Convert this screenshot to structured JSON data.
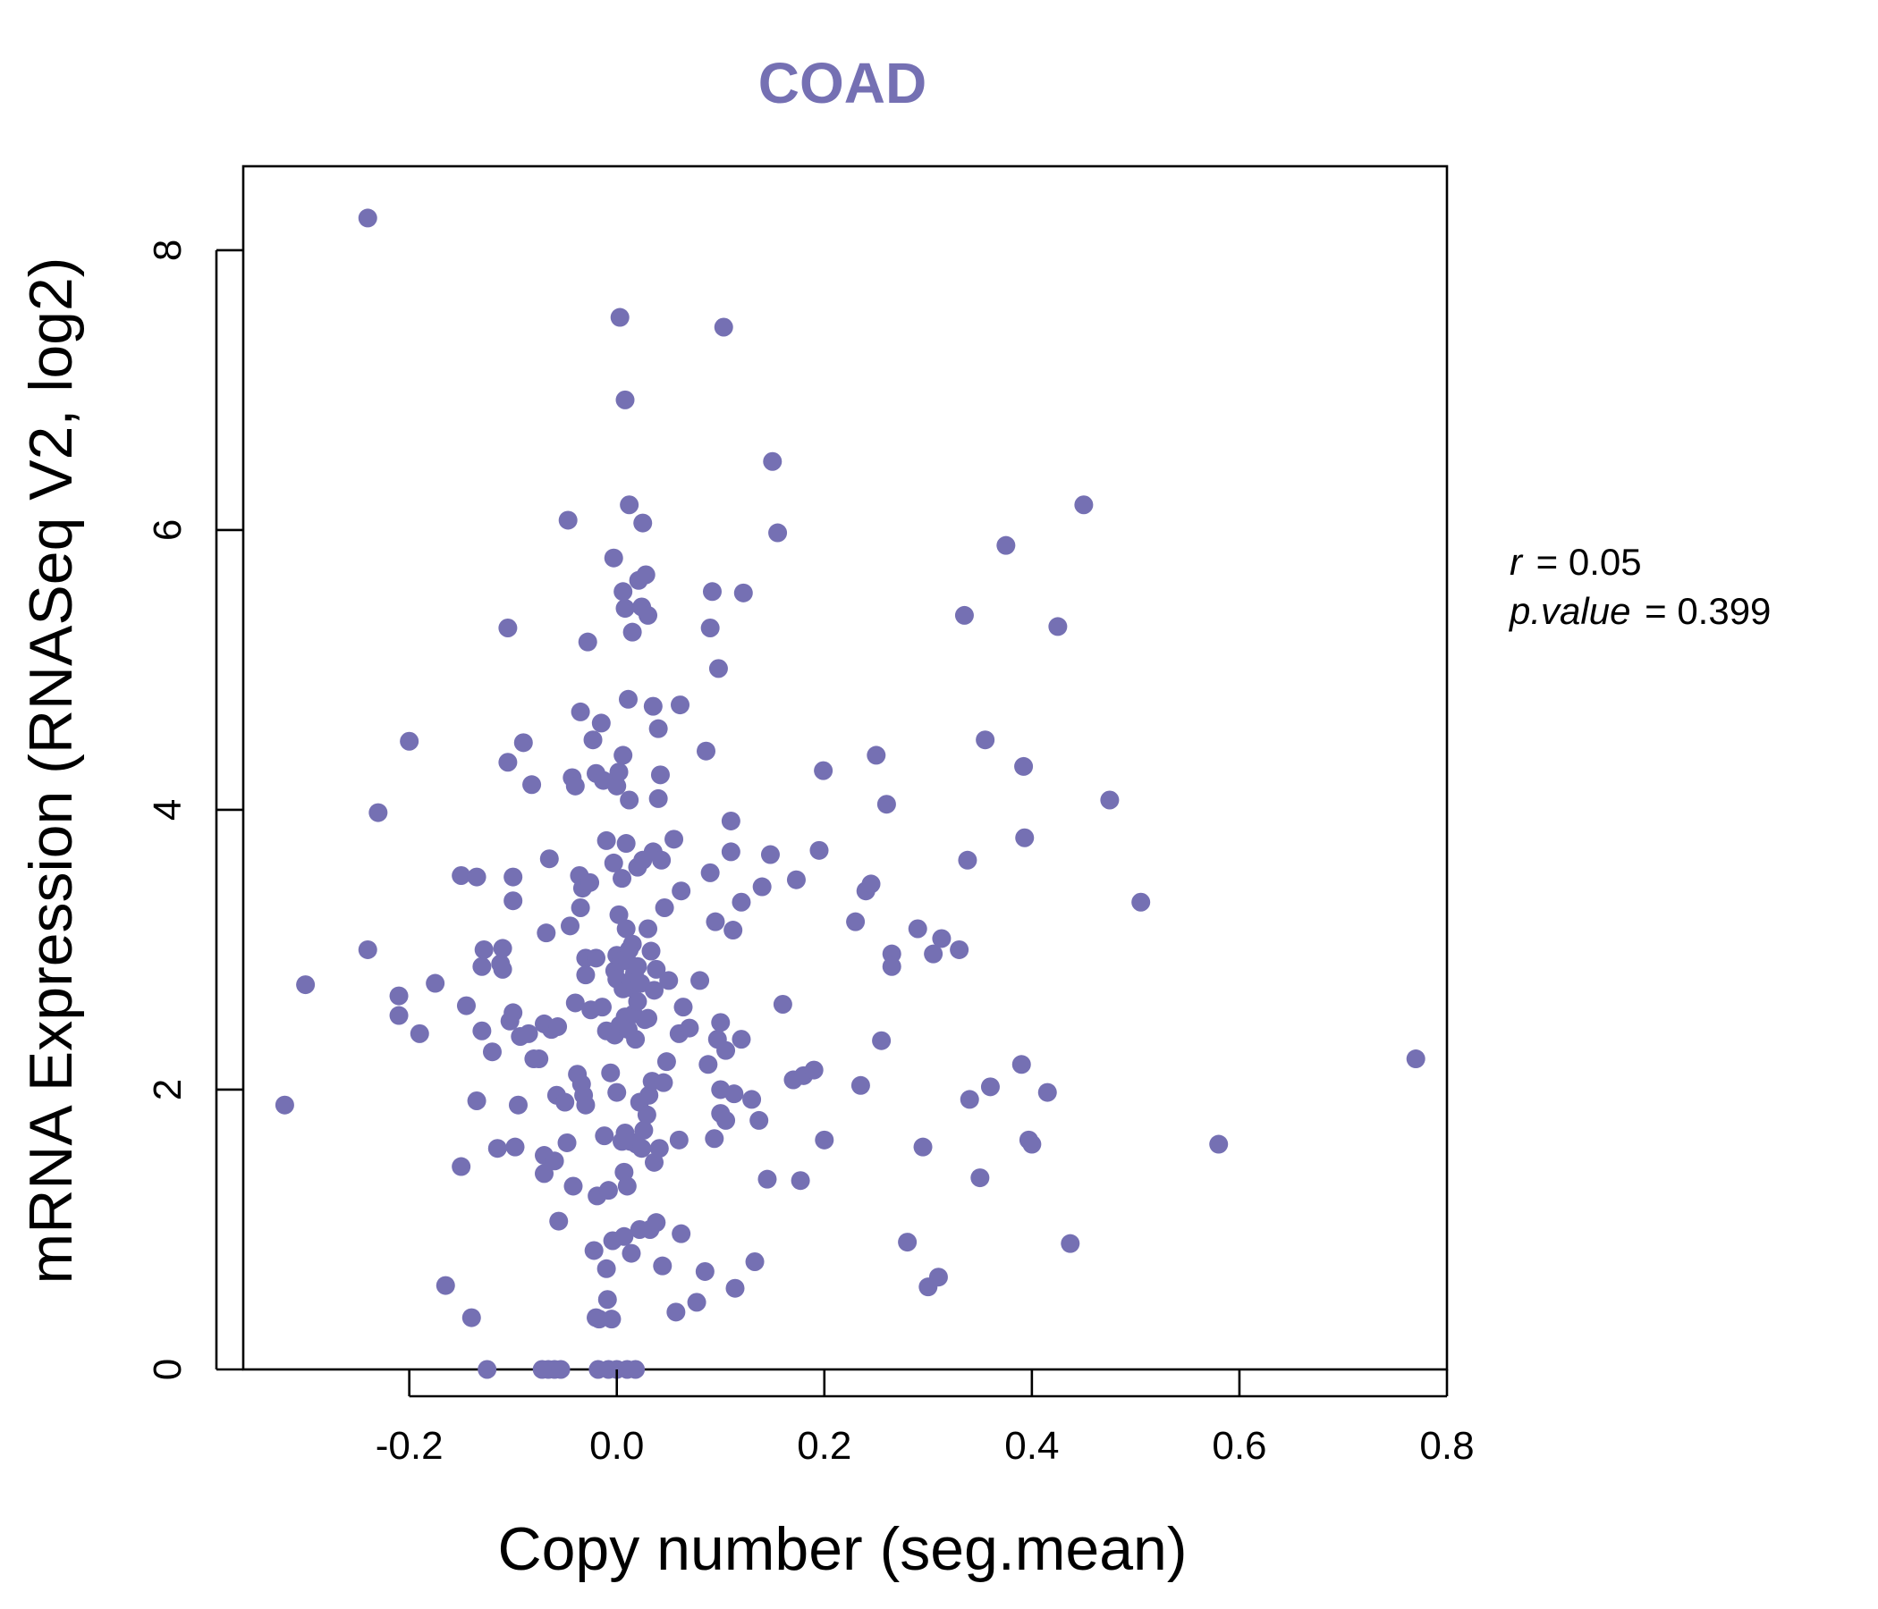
{
  "chart_data": {
    "type": "scatter",
    "title": "COAD",
    "xlabel": "Copy number (seg.mean)",
    "ylabel": "mRNA Expression (RNASeq V2, log2)",
    "xlim": [
      -0.36,
      0.8
    ],
    "ylim": [
      0,
      8.6
    ],
    "x_ticks": [
      "-0.2",
      "0.0",
      "0.2",
      "0.4",
      "0.6",
      "0.8"
    ],
    "y_ticks": [
      "0",
      "2",
      "4",
      "6",
      "8"
    ],
    "point_color": "#7570b3",
    "grid": false,
    "annotation": {
      "r_label": "r",
      "r_value": "0.05",
      "p_label": "p.value",
      "p_value": "0.399"
    },
    "points": [
      [
        -0.32,
        1.89
      ],
      [
        -0.3,
        2.75
      ],
      [
        -0.24,
        8.23
      ],
      [
        -0.24,
        3.0
      ],
      [
        -0.23,
        3.98
      ],
      [
        -0.21,
        2.67
      ],
      [
        -0.2,
        4.49
      ],
      [
        -0.21,
        2.53
      ],
      [
        -0.19,
        2.4
      ],
      [
        -0.175,
        2.76
      ],
      [
        -0.165,
        0.6
      ],
      [
        -0.15,
        1.45
      ],
      [
        -0.15,
        3.53
      ],
      [
        -0.145,
        2.6
      ],
      [
        -0.14,
        0.37
      ],
      [
        -0.135,
        3.52
      ],
      [
        -0.135,
        1.92
      ],
      [
        -0.13,
        2.42
      ],
      [
        -0.13,
        2.88
      ],
      [
        -0.128,
        3.0
      ],
      [
        -0.125,
        0.0
      ],
      [
        -0.12,
        2.27
      ],
      [
        -0.115,
        1.58
      ],
      [
        -0.112,
        2.9
      ],
      [
        -0.11,
        3.01
      ],
      [
        -0.11,
        2.86
      ],
      [
        -0.105,
        5.3
      ],
      [
        -0.105,
        4.34
      ],
      [
        -0.103,
        2.49
      ],
      [
        -0.1,
        3.35
      ],
      [
        -0.1,
        3.52
      ],
      [
        -0.1,
        2.55
      ],
      [
        -0.098,
        1.59
      ],
      [
        -0.095,
        1.89
      ],
      [
        -0.093,
        2.38
      ],
      [
        -0.09,
        4.48
      ],
      [
        -0.085,
        2.4
      ],
      [
        -0.082,
        4.18
      ],
      [
        -0.08,
        2.22
      ],
      [
        -0.075,
        2.22
      ],
      [
        -0.072,
        0.0
      ],
      [
        -0.07,
        1.53
      ],
      [
        -0.07,
        1.4
      ],
      [
        -0.07,
        2.47
      ],
      [
        -0.068,
        3.12
      ],
      [
        -0.066,
        0.0
      ],
      [
        -0.065,
        3.65
      ],
      [
        -0.063,
        2.43
      ],
      [
        -0.06,
        1.49
      ],
      [
        -0.06,
        0.0
      ],
      [
        -0.058,
        1.96
      ],
      [
        -0.057,
        2.45
      ],
      [
        -0.056,
        1.06
      ],
      [
        -0.054,
        0.0
      ],
      [
        -0.05,
        1.91
      ],
      [
        -0.048,
        1.62
      ],
      [
        -0.047,
        6.07
      ],
      [
        -0.045,
        3.17
      ],
      [
        -0.043,
        4.23
      ],
      [
        -0.042,
        1.31
      ],
      [
        -0.04,
        4.17
      ],
      [
        -0.04,
        2.62
      ],
      [
        -0.038,
        2.11
      ],
      [
        -0.036,
        3.53
      ],
      [
        -0.035,
        4.7
      ],
      [
        -0.035,
        3.3
      ],
      [
        -0.034,
        2.04
      ],
      [
        -0.033,
        3.44
      ],
      [
        -0.032,
        1.96
      ],
      [
        -0.03,
        2.94
      ],
      [
        -0.03,
        2.82
      ],
      [
        -0.03,
        1.89
      ],
      [
        -0.028,
        5.2
      ],
      [
        -0.026,
        3.48
      ],
      [
        -0.025,
        2.57
      ],
      [
        -0.023,
        4.5
      ],
      [
        -0.022,
        0.85
      ],
      [
        -0.02,
        0.37
      ],
      [
        -0.02,
        2.94
      ],
      [
        -0.02,
        4.26
      ],
      [
        -0.019,
        1.24
      ],
      [
        -0.018,
        0.0
      ],
      [
        -0.017,
        0.36
      ],
      [
        -0.015,
        4.62
      ],
      [
        -0.014,
        2.59
      ],
      [
        -0.013,
        4.21
      ],
      [
        -0.012,
        1.67
      ],
      [
        -0.01,
        2.42
      ],
      [
        -0.01,
        3.78
      ],
      [
        -0.01,
        0.72
      ],
      [
        -0.009,
        0.5
      ],
      [
        -0.008,
        0.0
      ],
      [
        -0.008,
        1.28
      ],
      [
        -0.006,
        2.12
      ],
      [
        -0.005,
        0.36
      ],
      [
        -0.004,
        0.92
      ],
      [
        -0.003,
        5.8
      ],
      [
        -0.003,
        3.62
      ],
      [
        -0.002,
        2.85
      ],
      [
        -0.002,
        2.39
      ],
      [
        0.0,
        4.17
      ],
      [
        0.0,
        2.79
      ],
      [
        0.0,
        2.96
      ],
      [
        0.0,
        1.98
      ],
      [
        0.0,
        0.0
      ],
      [
        0.002,
        4.27
      ],
      [
        0.002,
        3.25
      ],
      [
        0.003,
        2.46
      ],
      [
        0.003,
        7.52
      ],
      [
        0.004,
        2.92
      ],
      [
        0.005,
        3.51
      ],
      [
        0.005,
        1.63
      ],
      [
        0.006,
        5.56
      ],
      [
        0.006,
        4.39
      ],
      [
        0.006,
        2.72
      ],
      [
        0.007,
        1.41
      ],
      [
        0.007,
        0.95
      ],
      [
        0.008,
        6.93
      ],
      [
        0.008,
        1.69
      ],
      [
        0.008,
        2.52
      ],
      [
        0.008,
        5.44
      ],
      [
        0.009,
        3.76
      ],
      [
        0.009,
        3.15
      ],
      [
        0.01,
        2.92
      ],
      [
        0.01,
        0.0
      ],
      [
        0.01,
        1.31
      ],
      [
        0.011,
        4.79
      ],
      [
        0.011,
        2.43
      ],
      [
        0.012,
        6.18
      ],
      [
        0.012,
        4.07
      ],
      [
        0.012,
        3.0
      ],
      [
        0.013,
        2.73
      ],
      [
        0.013,
        1.63
      ],
      [
        0.014,
        0.83
      ],
      [
        0.014,
        2.78
      ],
      [
        0.015,
        5.27
      ],
      [
        0.015,
        3.04
      ],
      [
        0.016,
        2.54
      ],
      [
        0.017,
        2.83
      ],
      [
        0.018,
        2.36
      ],
      [
        0.018,
        0.0
      ],
      [
        0.019,
        1.61
      ],
      [
        0.02,
        3.59
      ],
      [
        0.02,
        2.63
      ],
      [
        0.02,
        2.88
      ],
      [
        0.021,
        5.64
      ],
      [
        0.022,
        1.0
      ],
      [
        0.022,
        1.91
      ],
      [
        0.023,
        2.76
      ],
      [
        0.024,
        5.45
      ],
      [
        0.024,
        1.58
      ],
      [
        0.025,
        6.05
      ],
      [
        0.025,
        3.64
      ],
      [
        0.026,
        1.71
      ],
      [
        0.027,
        2.5
      ],
      [
        0.028,
        5.68
      ],
      [
        0.029,
        1.82
      ],
      [
        0.03,
        5.39
      ],
      [
        0.03,
        3.15
      ],
      [
        0.03,
        2.51
      ],
      [
        0.031,
        1.96
      ],
      [
        0.032,
        1.0
      ],
      [
        0.033,
        2.99
      ],
      [
        0.034,
        2.06
      ],
      [
        0.035,
        3.7
      ],
      [
        0.035,
        4.74
      ],
      [
        0.036,
        1.48
      ],
      [
        0.036,
        2.71
      ],
      [
        0.038,
        1.05
      ],
      [
        0.038,
        2.86
      ],
      [
        0.04,
        4.08
      ],
      [
        0.04,
        4.58
      ],
      [
        0.041,
        1.58
      ],
      [
        0.042,
        4.25
      ],
      [
        0.043,
        3.64
      ],
      [
        0.044,
        0.74
      ],
      [
        0.045,
        2.05
      ],
      [
        0.046,
        3.3
      ],
      [
        0.048,
        2.2
      ],
      [
        0.05,
        2.78
      ],
      [
        0.055,
        3.79
      ],
      [
        0.057,
        0.41
      ],
      [
        0.06,
        1.64
      ],
      [
        0.06,
        2.4
      ],
      [
        0.061,
        4.75
      ],
      [
        0.062,
        3.42
      ],
      [
        0.062,
        0.97
      ],
      [
        0.064,
        2.59
      ],
      [
        0.07,
        2.44
      ],
      [
        0.077,
        0.48
      ],
      [
        0.08,
        2.78
      ],
      [
        0.085,
        0.7
      ],
      [
        0.086,
        4.42
      ],
      [
        0.088,
        2.18
      ],
      [
        0.09,
        3.55
      ],
      [
        0.09,
        5.3
      ],
      [
        0.092,
        5.56
      ],
      [
        0.094,
        1.65
      ],
      [
        0.095,
        3.2
      ],
      [
        0.097,
        2.36
      ],
      [
        0.098,
        5.01
      ],
      [
        0.1,
        2.0
      ],
      [
        0.1,
        1.83
      ],
      [
        0.1,
        2.48
      ],
      [
        0.103,
        7.45
      ],
      [
        0.105,
        1.78
      ],
      [
        0.105,
        2.28
      ],
      [
        0.11,
        3.92
      ],
      [
        0.11,
        3.7
      ],
      [
        0.112,
        3.14
      ],
      [
        0.113,
        1.97
      ],
      [
        0.114,
        0.58
      ],
      [
        0.12,
        2.36
      ],
      [
        0.12,
        3.34
      ],
      [
        0.122,
        5.55
      ],
      [
        0.13,
        1.93
      ],
      [
        0.133,
        0.77
      ],
      [
        0.137,
        1.78
      ],
      [
        0.14,
        3.45
      ],
      [
        0.145,
        1.36
      ],
      [
        0.148,
        3.68
      ],
      [
        0.15,
        6.49
      ],
      [
        0.155,
        5.98
      ],
      [
        0.16,
        2.61
      ],
      [
        0.17,
        2.07
      ],
      [
        0.173,
        3.5
      ],
      [
        0.177,
        1.35
      ],
      [
        0.18,
        2.1
      ],
      [
        0.19,
        2.14
      ],
      [
        0.195,
        3.71
      ],
      [
        0.199,
        4.28
      ],
      [
        0.2,
        1.64
      ],
      [
        0.23,
        3.2
      ],
      [
        0.235,
        2.03
      ],
      [
        0.24,
        3.42
      ],
      [
        0.245,
        3.47
      ],
      [
        0.25,
        4.39
      ],
      [
        0.255,
        2.35
      ],
      [
        0.26,
        4.04
      ],
      [
        0.265,
        2.97
      ],
      [
        0.265,
        2.88
      ],
      [
        0.28,
        0.91
      ],
      [
        0.29,
        3.15
      ],
      [
        0.295,
        1.59
      ],
      [
        0.3,
        0.59
      ],
      [
        0.305,
        2.97
      ],
      [
        0.31,
        0.66
      ],
      [
        0.313,
        3.08
      ],
      [
        0.33,
        3.0
      ],
      [
        0.335,
        5.39
      ],
      [
        0.338,
        3.64
      ],
      [
        0.34,
        1.93
      ],
      [
        0.35,
        1.37
      ],
      [
        0.355,
        4.5
      ],
      [
        0.36,
        2.02
      ],
      [
        0.375,
        5.89
      ],
      [
        0.39,
        2.18
      ],
      [
        0.392,
        4.31
      ],
      [
        0.393,
        3.8
      ],
      [
        0.397,
        1.64
      ],
      [
        0.4,
        1.61
      ],
      [
        0.415,
        1.98
      ],
      [
        0.425,
        5.31
      ],
      [
        0.437,
        0.9
      ],
      [
        0.45,
        6.18
      ],
      [
        0.475,
        4.07
      ],
      [
        0.505,
        3.34
      ],
      [
        0.58,
        1.61
      ],
      [
        0.77,
        2.22
      ]
    ]
  }
}
